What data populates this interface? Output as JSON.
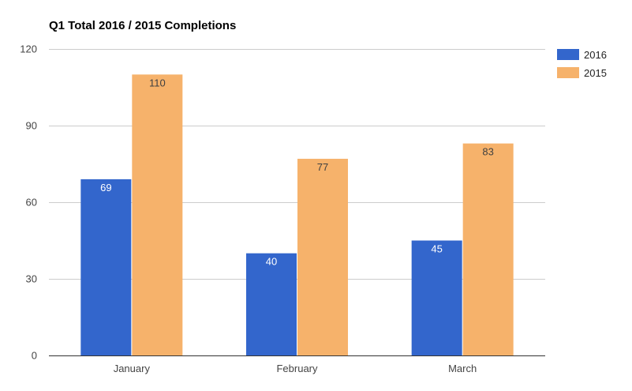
{
  "chart_data": {
    "type": "bar",
    "title": "Q1 Total 2016 / 2015 Completions",
    "xlabel": "",
    "ylabel": "",
    "categories": [
      "January",
      "February",
      "March"
    ],
    "series": [
      {
        "name": "2016",
        "values": [
          69,
          40,
          45
        ],
        "color": "#3366cc",
        "label_color": "#ffffff"
      },
      {
        "name": "2015",
        "values": [
          110,
          77,
          83
        ],
        "color": "#f6b26b",
        "label_color": "#404040"
      }
    ],
    "ylim": [
      0,
      120
    ],
    "yticks": [
      0,
      30,
      60,
      90,
      120
    ],
    "grid": true,
    "legend_position": "right",
    "data_labels": true
  }
}
